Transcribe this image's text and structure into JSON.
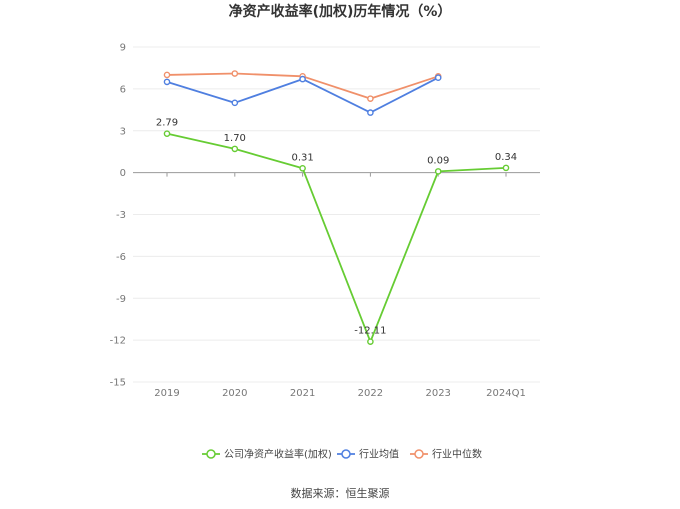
{
  "chart_data": {
    "type": "line",
    "title": "净资产收益率(加权)历年情况（%）",
    "categories": [
      "2019",
      "2020",
      "2021",
      "2022",
      "2023",
      "2024Q1"
    ],
    "ylim": [
      -15,
      9
    ],
    "yticks": [
      9,
      6,
      3,
      0,
      -3,
      -6,
      -9,
      -12,
      -15
    ],
    "grid": true,
    "legend_position": "bottom",
    "series": [
      {
        "name": "公司净资产收益率(加权)",
        "color": "#66cc33",
        "values": [
          2.79,
          1.7,
          0.31,
          -12.11,
          0.09,
          0.34
        ],
        "labels": [
          "2.79",
          "1.70",
          "0.31",
          "-12.11",
          "0.09",
          "0.34"
        ]
      },
      {
        "name": "行业均值",
        "color": "#4f7fe0",
        "values": [
          6.5,
          5.0,
          6.7,
          4.3,
          6.8,
          null
        ]
      },
      {
        "name": "行业中位数",
        "color": "#f0906a",
        "values": [
          7.0,
          7.1,
          6.9,
          5.3,
          6.9,
          null
        ]
      }
    ]
  },
  "footer": {
    "source": "数据来源：恒生聚源"
  }
}
